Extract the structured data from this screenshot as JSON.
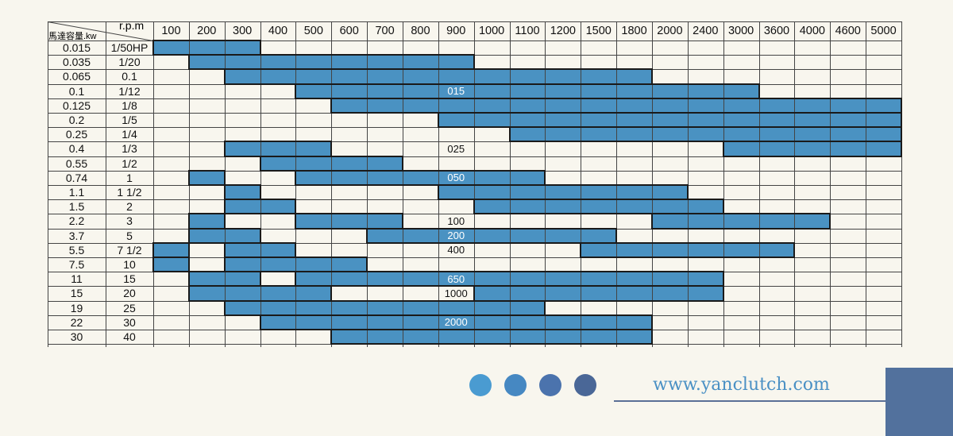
{
  "header": {
    "corner_rpm": "r.p.m",
    "corner_kw": "馬達容量.kw",
    "rpm": [
      "100",
      "200",
      "300",
      "400",
      "500",
      "600",
      "700",
      "800",
      "900",
      "1000",
      "1100",
      "1200",
      "1500",
      "1800",
      "2000",
      "2400",
      "3000",
      "3600",
      "4000",
      "4600",
      "5000"
    ]
  },
  "rows": [
    {
      "kw": "0.015",
      "hp": "1/50HP"
    },
    {
      "kw": "0.035",
      "hp": "1/20"
    },
    {
      "kw": "0.065",
      "hp": "0.1"
    },
    {
      "kw": "0.1",
      "hp": "1/12"
    },
    {
      "kw": "0.125",
      "hp": "1/8"
    },
    {
      "kw": "0.2",
      "hp": "1/5"
    },
    {
      "kw": "0.25",
      "hp": "1/4"
    },
    {
      "kw": "0.4",
      "hp": "1/3"
    },
    {
      "kw": "0.55",
      "hp": "1/2"
    },
    {
      "kw": "0.74",
      "hp": "1"
    },
    {
      "kw": "1.1",
      "hp": "1 1/2"
    },
    {
      "kw": "1.5",
      "hp": "2"
    },
    {
      "kw": "2.2",
      "hp": "3"
    },
    {
      "kw": "3.7",
      "hp": "5"
    },
    {
      "kw": "5.5",
      "hp": "7 1/2"
    },
    {
      "kw": "7.5",
      "hp": "10"
    },
    {
      "kw": "11",
      "hp": "15"
    },
    {
      "kw": "15",
      "hp": "20"
    },
    {
      "kw": "19",
      "hp": "25"
    },
    {
      "kw": "22",
      "hp": "30"
    },
    {
      "kw": "30",
      "hp": "40"
    }
  ],
  "selection": {
    "fills": [
      [
        "100",
        "300"
      ],
      [
        "200",
        "900"
      ],
      [
        "300",
        "1800"
      ],
      [
        "500",
        "3000"
      ],
      [
        "600",
        "5000"
      ],
      [
        "900",
        "5000"
      ],
      [
        "1100",
        "5000"
      ],
      [
        [
          "300",
          "500"
        ],
        [
          "3000",
          "5000"
        ]
      ],
      [
        "400",
        "700"
      ],
      [
        [
          "200",
          "200"
        ],
        [
          "500",
          "1100"
        ]
      ],
      [
        [
          "300",
          "300"
        ],
        [
          "900",
          "2000"
        ]
      ],
      [
        [
          "300",
          "400"
        ],
        [
          "1000",
          "2400"
        ]
      ],
      [
        [
          "200",
          "200"
        ],
        [
          "500",
          "700"
        ],
        [
          "2000",
          "4000"
        ]
      ],
      [
        [
          "200",
          "300"
        ],
        [
          "700",
          "1500"
        ]
      ],
      [
        [
          "100",
          "100"
        ],
        [
          "300",
          "400"
        ],
        [
          "1500",
          "3600"
        ]
      ],
      [
        [
          "100",
          "100"
        ],
        [
          "300",
          "600"
        ]
      ],
      [
        [
          "200",
          "300"
        ],
        [
          "500",
          "2400"
        ]
      ],
      [
        [
          "200",
          "500"
        ],
        [
          "1000",
          "2400"
        ]
      ],
      [
        "300",
        "1100"
      ],
      [
        "400",
        "1800"
      ],
      [
        "600",
        "1800"
      ]
    ],
    "models": [
      {
        "label": "015",
        "row": "0.1",
        "rpm": "900",
        "on_blue": true
      },
      {
        "label": "025",
        "row": "0.4",
        "rpm": "900",
        "on_blue": false
      },
      {
        "label": "050",
        "row": "0.74",
        "rpm": "900",
        "on_blue": true
      },
      {
        "label": "100",
        "row": "2.2",
        "rpm": "900",
        "on_blue": false
      },
      {
        "label": "200",
        "row": "3.7",
        "rpm": "900",
        "on_blue": true
      },
      {
        "label": "400",
        "row": "5.5",
        "rpm": "900",
        "on_blue": false
      },
      {
        "label": "650",
        "row": "11",
        "rpm": "900",
        "on_blue": true
      },
      {
        "label": "1000",
        "row": "15",
        "rpm": "900",
        "on_blue": false
      },
      {
        "label": "2000",
        "row": "22",
        "rpm": "900",
        "on_blue": true
      }
    ]
  },
  "footer": {
    "website": "www.yanclutch.com",
    "dot_colors": [
      "#4a9bd1",
      "#4688c2",
      "#4b73ad",
      "#4a6797"
    ]
  },
  "colors": {
    "background": "#f8f6ee",
    "fill": "#4a92c2",
    "grid": "#444444",
    "accent_block": "#52719d"
  }
}
